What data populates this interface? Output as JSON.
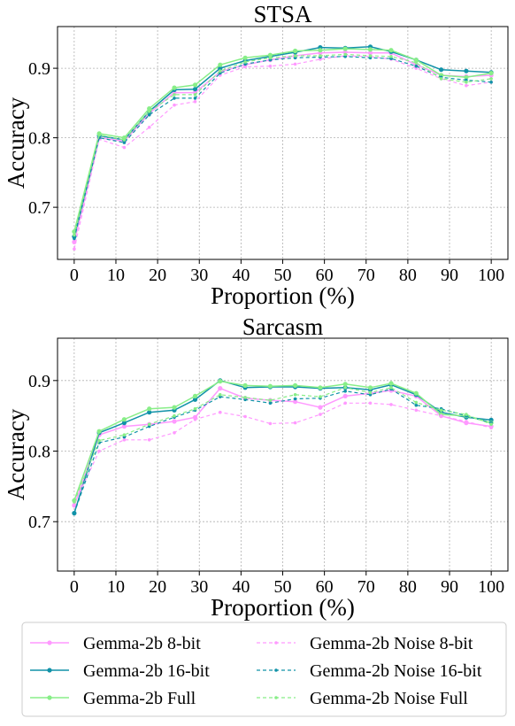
{
  "chart_data": [
    {
      "type": "line",
      "title": "STSA",
      "xlabel": "Proportion (%)",
      "ylabel": "Accuracy",
      "x": [
        0,
        6,
        12,
        18,
        24,
        29,
        35,
        41,
        47,
        53,
        59,
        65,
        71,
        76,
        82,
        88,
        94,
        100
      ],
      "xlim": [
        -4,
        104
      ],
      "ylim": [
        0.625,
        0.96
      ],
      "xticks": [
        0,
        10,
        20,
        30,
        40,
        50,
        60,
        70,
        80,
        90,
        100
      ],
      "yticks": [
        0.7,
        0.8,
        0.9
      ],
      "xtick_labels": [
        "0",
        "10",
        "20",
        "30",
        "40",
        "50",
        "60",
        "70",
        "80",
        "90",
        "100"
      ],
      "ytick_labels": [
        "0.7",
        "0.8",
        "0.9"
      ],
      "grid": true,
      "series": [
        {
          "name": "Gemma-2b 8-bit",
          "values": [
            0.65,
            0.8,
            0.795,
            0.835,
            0.865,
            0.865,
            0.895,
            0.905,
            0.912,
            0.918,
            0.922,
            0.923,
            0.922,
            0.922,
            0.905,
            0.89,
            0.888,
            0.89
          ]
        },
        {
          "name": "Gemma-2b 16-bit",
          "values": [
            0.658,
            0.803,
            0.797,
            0.838,
            0.869,
            0.87,
            0.9,
            0.911,
            0.917,
            0.923,
            0.93,
            0.929,
            0.931,
            0.924,
            0.912,
            0.898,
            0.896,
            0.894
          ]
        },
        {
          "name": "Gemma-2b Full",
          "values": [
            0.665,
            0.806,
            0.8,
            0.842,
            0.872,
            0.876,
            0.905,
            0.915,
            0.919,
            0.925,
            0.926,
            0.928,
            0.927,
            0.926,
            0.912,
            0.89,
            0.887,
            0.893
          ]
        },
        {
          "name": "Gemma-2b Noise 8-bit",
          "values": [
            0.64,
            0.798,
            0.786,
            0.815,
            0.847,
            0.852,
            0.89,
            0.902,
            0.903,
            0.906,
            0.913,
            0.918,
            0.917,
            0.913,
            0.9,
            0.885,
            0.875,
            0.88
          ]
        },
        {
          "name": "Gemma-2b Noise 16-bit",
          "values": [
            0.655,
            0.8,
            0.793,
            0.833,
            0.857,
            0.857,
            0.893,
            0.906,
            0.912,
            0.915,
            0.916,
            0.917,
            0.915,
            0.914,
            0.903,
            0.887,
            0.883,
            0.88
          ]
        },
        {
          "name": "Gemma-2b Noise Full",
          "values": [
            0.66,
            0.804,
            0.797,
            0.838,
            0.862,
            0.862,
            0.896,
            0.909,
            0.915,
            0.918,
            0.918,
            0.92,
            0.918,
            0.917,
            0.908,
            0.885,
            0.88,
            0.885
          ]
        }
      ]
    },
    {
      "type": "line",
      "title": "Sarcasm",
      "xlabel": "Proportion (%)",
      "ylabel": "Accuracy",
      "x": [
        0,
        6,
        12,
        18,
        24,
        29,
        35,
        41,
        47,
        53,
        59,
        65,
        71,
        76,
        82,
        88,
        94,
        100
      ],
      "xlim": [
        -4,
        104
      ],
      "ylim": [
        0.63,
        0.96
      ],
      "xticks": [
        0,
        10,
        20,
        30,
        40,
        50,
        60,
        70,
        80,
        90,
        100
      ],
      "yticks": [
        0.7,
        0.8,
        0.9
      ],
      "xtick_labels": [
        "0",
        "10",
        "20",
        "30",
        "40",
        "50",
        "60",
        "70",
        "80",
        "90",
        "100"
      ],
      "ytick_labels": [
        "0.7",
        "0.8",
        "0.9"
      ],
      "grid": true,
      "series": [
        {
          "name": "Gemma-2b 8-bit",
          "values": [
            0.723,
            0.823,
            0.835,
            0.838,
            0.842,
            0.848,
            0.889,
            0.875,
            0.872,
            0.87,
            0.862,
            0.878,
            0.882,
            0.886,
            0.878,
            0.85,
            0.84,
            0.835
          ]
        },
        {
          "name": "Gemma-2b 16-bit",
          "values": [
            0.712,
            0.826,
            0.84,
            0.855,
            0.858,
            0.873,
            0.9,
            0.89,
            0.891,
            0.891,
            0.889,
            0.89,
            0.887,
            0.894,
            0.88,
            0.855,
            0.848,
            0.844
          ]
        },
        {
          "name": "Gemma-2b Full",
          "values": [
            0.73,
            0.828,
            0.845,
            0.86,
            0.862,
            0.878,
            0.899,
            0.893,
            0.892,
            0.893,
            0.89,
            0.895,
            0.89,
            0.896,
            0.882,
            0.852,
            0.85,
            0.84
          ]
        },
        {
          "name": "Gemma-2b Noise 8-bit",
          "values": [
            0.725,
            0.8,
            0.816,
            0.816,
            0.826,
            0.845,
            0.855,
            0.849,
            0.839,
            0.84,
            0.852,
            0.868,
            0.868,
            0.866,
            0.858,
            0.85,
            0.842,
            0.833
          ]
        },
        {
          "name": "Gemma-2b Noise 16-bit",
          "values": [
            0.712,
            0.812,
            0.82,
            0.835,
            0.848,
            0.858,
            0.877,
            0.873,
            0.868,
            0.874,
            0.875,
            0.885,
            0.88,
            0.888,
            0.865,
            0.86,
            0.85,
            0.84
          ]
        },
        {
          "name": "Gemma-2b Noise Full",
          "values": [
            0.728,
            0.815,
            0.823,
            0.838,
            0.85,
            0.86,
            0.88,
            0.876,
            0.872,
            0.88,
            0.877,
            0.89,
            0.883,
            0.89,
            0.869,
            0.858,
            0.852,
            0.838
          ]
        }
      ]
    }
  ],
  "style": {
    "series_colors": [
      "#ff99ff",
      "#1192a8",
      "#88ee88",
      "#ff99ff",
      "#1192a8",
      "#88ee88"
    ],
    "series_dashed": [
      false,
      false,
      false,
      true,
      true,
      true
    ]
  },
  "legend": {
    "placement": "bottom",
    "entries": [
      "Gemma-2b 8-bit",
      "Gemma-2b Noise 8-bit",
      "Gemma-2b 16-bit",
      "Gemma-2b Noise 16-bit",
      "Gemma-2b Full",
      "Gemma-2b Noise Full"
    ]
  }
}
